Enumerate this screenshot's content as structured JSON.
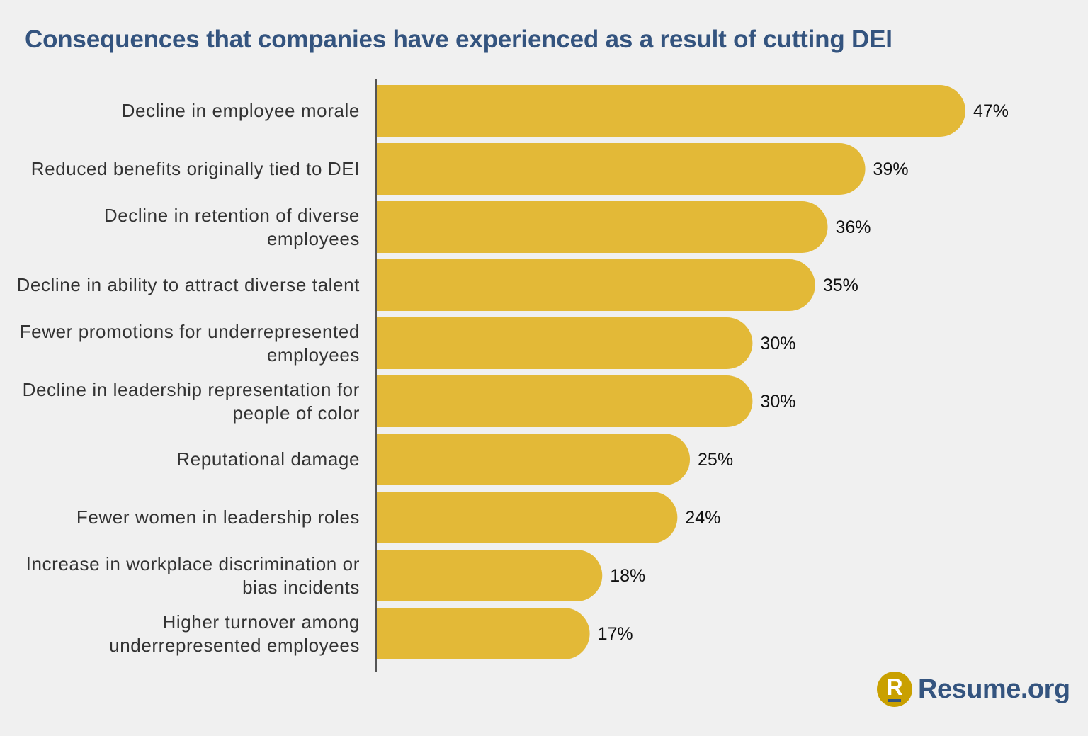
{
  "chart_data": {
    "type": "bar",
    "orientation": "horizontal",
    "title": "Consequences that companies have experienced as a result of cutting DEI",
    "categories": [
      "Decline in employee morale",
      "Reduced benefits originally tied to DEI",
      "Decline in retention of diverse employees",
      "Decline in ability to attract diverse talent",
      "Fewer promotions for underrepresented employees",
      "Decline in leadership representation for people of color",
      "Reputational damage",
      "Fewer women in leadership roles",
      "Increase in workplace discrimination or bias incidents",
      "Higher turnover among underrepresented employees"
    ],
    "values": [
      47,
      39,
      36,
      35,
      30,
      30,
      25,
      24,
      18,
      17
    ],
    "value_labels": [
      "47%",
      "39%",
      "36%",
      "35%",
      "30%",
      "30%",
      "25%",
      "24%",
      "18%",
      "17%"
    ],
    "unit": "%",
    "xlim": [
      0,
      47
    ],
    "grid": false,
    "legend": "none",
    "colors": {
      "bar": "#e3b937",
      "title": "#34547f",
      "axis": "#555555",
      "background": "#f0f0f0"
    }
  },
  "logo": {
    "text": "Resume.org",
    "mark": "R",
    "circle_color": "#c9a000",
    "text_color": "#34547f"
  }
}
